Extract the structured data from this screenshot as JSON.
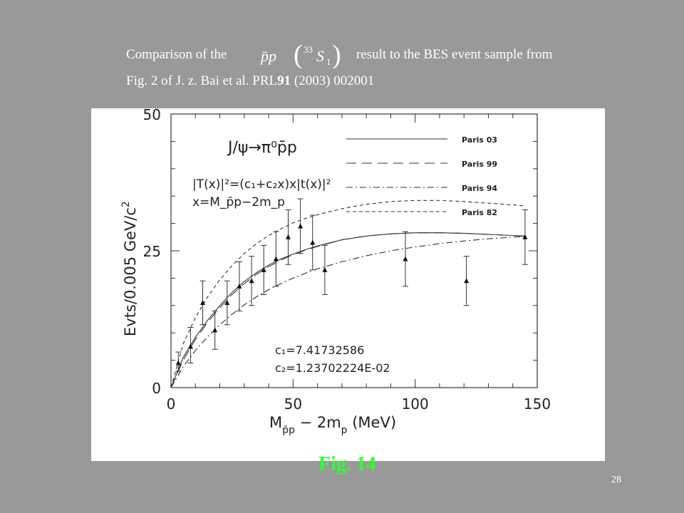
{
  "slide": {
    "caption_line1_before": "Comparison of the",
    "caption_line1_after": "result to the BES event sample from",
    "caption_line2_prefix": "Fig. 2 of J. z. Bai et al. PRL",
    "caption_line2_bold": "91",
    "caption_line2_suffix": " (2003) 002001",
    "formula": {
      "main": "p̄p",
      "paren_sup": "33",
      "paren_base": "S",
      "paren_sub": "1"
    },
    "figure_label": "Fig. 14",
    "page_number": "28",
    "colors": {
      "background": "#999999",
      "caption": "#ffffff",
      "figure_label": "#33ff33"
    }
  },
  "chart_data": {
    "type": "line",
    "xlabel": "M_p̄p − 2m_p (MeV)",
    "xlabel_parts": {
      "main": "M",
      "sub": "p̄p",
      "mid": " − 2m",
      "sub2": "p",
      "end": " (MeV)"
    },
    "ylabel": "Evts/0.005 GeV/c²",
    "ylabel_parts": {
      "main": "Evts/0.005 GeV/c",
      "sup": "2"
    },
    "xlim": [
      0,
      150
    ],
    "ylim": [
      0,
      50
    ],
    "x_ticks": [
      "0",
      "50",
      "100",
      "150"
    ],
    "y_ticks": [
      "0",
      "25",
      "50"
    ],
    "annotations": {
      "process": "J/ψ→π⁰p̄p",
      "model_line1": "|T(x)|²=(c₁+c₂x)x|t(x)|²",
      "model_line2": "x=M_p̄p−2m_p",
      "c1": "c₁=7.41732586",
      "c2": "c₂=1.23702224E-02"
    },
    "legend_position": "top-right",
    "series": [
      {
        "name": "Paris 03",
        "style": "solid",
        "x": [
          0,
          5,
          10,
          15,
          20,
          25,
          30,
          35,
          40,
          45,
          50,
          55,
          60,
          70,
          80,
          90,
          100,
          110,
          120,
          130,
          140,
          145
        ],
        "y": [
          0,
          5.5,
          9.2,
          12.3,
          15.0,
          17.4,
          19.4,
          21.0,
          22.4,
          23.5,
          24.4,
          25.2,
          25.9,
          27.0,
          27.7,
          28.1,
          28.3,
          28.3,
          28.2,
          28.0,
          27.8,
          27.7
        ]
      },
      {
        "name": "Paris 99",
        "style": "long-dash",
        "x": [
          0,
          5,
          10,
          15,
          20,
          25,
          30,
          35,
          40,
          45,
          50,
          55,
          60,
          70,
          80,
          90,
          100,
          110,
          120,
          130,
          140,
          145
        ],
        "y": [
          0,
          5.0,
          8.8,
          11.9,
          14.6,
          17.0,
          19.0,
          20.7,
          22.1,
          23.3,
          24.3,
          25.1,
          25.8,
          27.0,
          27.7,
          28.1,
          28.3,
          28.3,
          28.2,
          28.0,
          27.8,
          27.6
        ]
      },
      {
        "name": "Paris 94",
        "style": "dash-dot",
        "x": [
          0,
          5,
          10,
          15,
          20,
          25,
          30,
          35,
          40,
          45,
          50,
          55,
          60,
          70,
          80,
          90,
          100,
          110,
          120,
          130,
          140,
          145
        ],
        "y": [
          0,
          3.8,
          6.8,
          9.3,
          11.5,
          13.4,
          15.1,
          16.6,
          17.9,
          19.0,
          20.0,
          20.9,
          21.7,
          23.0,
          24.1,
          25.0,
          25.7,
          26.3,
          26.8,
          27.2,
          27.5,
          27.6
        ]
      },
      {
        "name": "Paris 82",
        "style": "short-dash",
        "x": [
          0,
          5,
          10,
          15,
          20,
          25,
          30,
          35,
          40,
          45,
          50,
          55,
          60,
          70,
          80,
          90,
          100,
          110,
          120,
          130,
          140,
          145
        ],
        "y": [
          0,
          8.0,
          12.8,
          16.6,
          19.7,
          22.3,
          24.5,
          26.3,
          27.8,
          29.0,
          30.1,
          30.9,
          31.6,
          32.7,
          33.5,
          34.0,
          34.2,
          34.2,
          34.0,
          33.7,
          33.4,
          33.2
        ]
      }
    ],
    "data_points": {
      "x": [
        3,
        8,
        13,
        18,
        23,
        28,
        33,
        38,
        43,
        48,
        53,
        58,
        63,
        96,
        121,
        145
      ],
      "y": [
        4.5,
        7.5,
        15.5,
        10.5,
        15.5,
        18.5,
        19.5,
        21.5,
        23.5,
        27.5,
        29.5,
        26.5,
        21.5,
        23.5,
        19.5,
        27.5
      ],
      "err_low": [
        1.5,
        3.0,
        4.0,
        3.5,
        4.0,
        4.5,
        4.5,
        4.5,
        5.0,
        5.0,
        5.0,
        5.0,
        4.5,
        5.0,
        4.5,
        5.0
      ],
      "err_high": [
        2.0,
        3.5,
        4.0,
        3.5,
        4.0,
        4.5,
        4.5,
        4.5,
        5.0,
        5.0,
        5.0,
        5.0,
        4.5,
        5.0,
        4.5,
        5.0
      ]
    }
  }
}
